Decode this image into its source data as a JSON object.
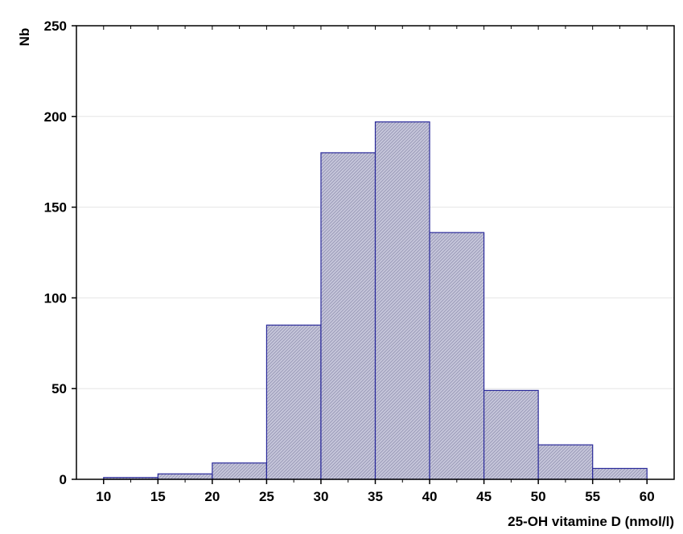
{
  "chart_data": {
    "type": "bar",
    "title": "",
    "xlabel": "25-OH vitamine D (nmol/l)",
    "ylabel": "Nb",
    "bins": [
      {
        "from": 10,
        "to": 15,
        "value": 1
      },
      {
        "from": 15,
        "to": 20,
        "value": 3
      },
      {
        "from": 20,
        "to": 25,
        "value": 9
      },
      {
        "from": 25,
        "to": 30,
        "value": 85
      },
      {
        "from": 30,
        "to": 35,
        "value": 180
      },
      {
        "from": 35,
        "to": 40,
        "value": 197
      },
      {
        "from": 40,
        "to": 45,
        "value": 136
      },
      {
        "from": 45,
        "to": 50,
        "value": 49
      },
      {
        "from": 50,
        "to": 55,
        "value": 19
      },
      {
        "from": 55,
        "to": 60,
        "value": 6
      }
    ],
    "xticks": [
      "10",
      "15",
      "20",
      "25",
      "30",
      "35",
      "40",
      "45",
      "50",
      "55",
      "60"
    ],
    "yticks": [
      "0",
      "50",
      "100",
      "150",
      "200",
      "250"
    ],
    "xlim": [
      7.5,
      62.5
    ],
    "ylim": [
      0,
      250
    ],
    "grid": true,
    "colors": {
      "bar_fill": "#c8c8dc",
      "bar_hatch": "#9a9ab8",
      "bar_edge": "#2a2a9a",
      "grid": "#e6e6e6",
      "axis": "#000000"
    }
  }
}
